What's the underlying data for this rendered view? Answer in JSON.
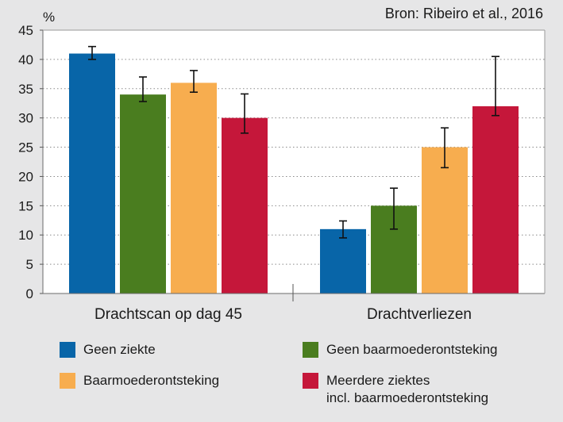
{
  "chart_data": {
    "type": "bar",
    "source": "Bron: Ribeiro et al., 2016",
    "ylabel": "%",
    "ylim": [
      0,
      45
    ],
    "yticks": [
      0,
      5,
      10,
      15,
      20,
      25,
      30,
      35,
      40,
      45
    ],
    "grid": true,
    "legend_position": "bottom",
    "categories": [
      "Drachtscan op dag 45",
      "Drachtverliezen"
    ],
    "series": [
      {
        "name": "Geen ziekte",
        "color": "#0865a8",
        "values": [
          41,
          11
        ],
        "error_low": [
          40,
          9.5
        ],
        "error_high": [
          42.2,
          12.4
        ]
      },
      {
        "name": "Geen baarmoederontsteking",
        "color": "#4a7d1f",
        "values": [
          34,
          15
        ],
        "error_low": [
          32.8,
          11
        ],
        "error_high": [
          37,
          18
        ]
      },
      {
        "name": "Baarmoederontsteking",
        "color": "#f7ad4f",
        "values": [
          36,
          25
        ],
        "error_low": [
          34.4,
          21.5
        ],
        "error_high": [
          38.1,
          28.3
        ]
      },
      {
        "name": "Meerdere ziektes\nincl. baarmoederontsteking",
        "color": "#c5173a",
        "values": [
          30,
          32
        ],
        "error_low": [
          27.4,
          30.4
        ],
        "error_high": [
          34.1,
          40.5
        ]
      }
    ]
  }
}
